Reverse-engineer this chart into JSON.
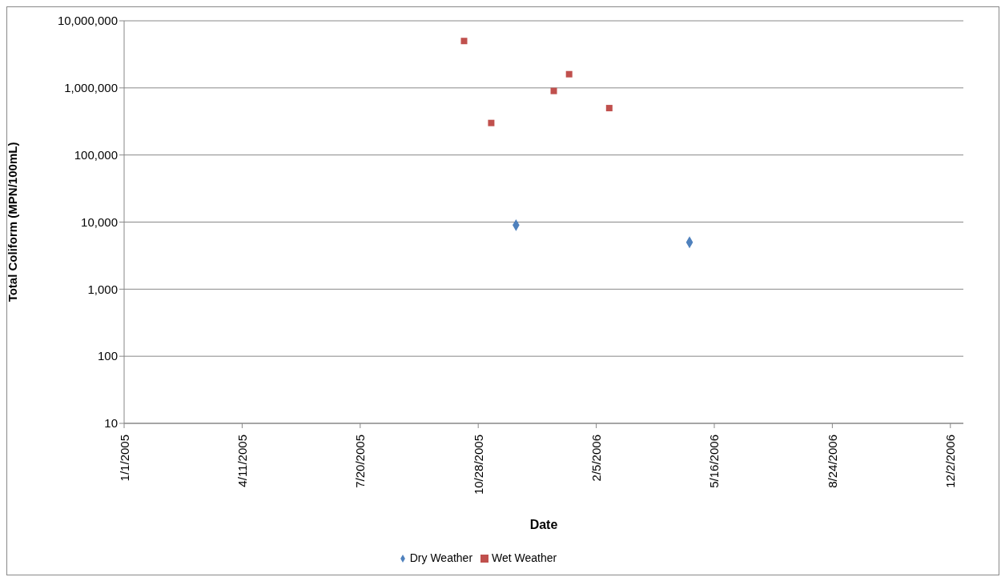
{
  "chart_data": {
    "type": "scatter",
    "xlabel": "Date",
    "ylabel": "Total Coliform (MPN/100mL)",
    "log": "y",
    "grid": "y",
    "legend": "bottom",
    "xlim": [
      "2005-01-01",
      "2006-12-13"
    ],
    "xticks": [
      {
        "value": "2005-01-01",
        "label": "1/1/2005"
      },
      {
        "value": "2005-04-11",
        "label": "4/11/2005"
      },
      {
        "value": "2005-07-20",
        "label": "7/20/2005"
      },
      {
        "value": "2005-10-28",
        "label": "10/28/2005"
      },
      {
        "value": "2006-02-05",
        "label": "2/5/2006"
      },
      {
        "value": "2006-05-16",
        "label": "5/16/2006"
      },
      {
        "value": "2006-08-24",
        "label": "8/24/2006"
      },
      {
        "value": "2006-12-02",
        "label": "12/2/2006"
      }
    ],
    "ylim": [
      10,
      10000000
    ],
    "yticks": [
      10,
      100,
      {
        "value": 1000,
        "label": "1,000"
      },
      {
        "value": 10000,
        "label": "10,000"
      },
      {
        "value": 100000,
        "label": "100,000"
      },
      {
        "value": 1000000,
        "label": "1,000,000"
      },
      {
        "value": 10000000,
        "label": "10,000,000"
      }
    ],
    "series": [
      {
        "name": "Dry Weather",
        "color": "#4f81bd",
        "marker": "diamond",
        "x": [
          "2005-11-29",
          "2006-04-25"
        ],
        "values": [
          9000,
          5000
        ]
      },
      {
        "name": "Wet Weather",
        "color": "#c0504d",
        "marker": "square",
        "x": [
          "2005-10-16",
          "2005-11-08",
          "2005-12-31",
          "2006-01-13",
          "2006-02-16"
        ],
        "values": [
          5000000,
          300000,
          900000,
          1600000,
          500000
        ]
      }
    ]
  }
}
